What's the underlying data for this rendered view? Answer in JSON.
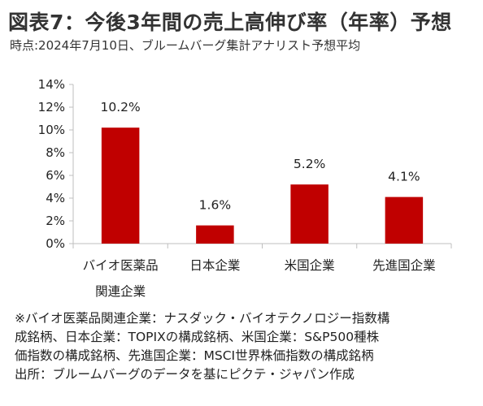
{
  "title": "図表7：今後3年間の売上高伸び率（年率）予想",
  "subtitle": "時点:2024年7月10日、ブルームバーグ集計アナリスト予想平均",
  "colors": {
    "bar": "#c00000",
    "axis": "#bfbfbf",
    "text": "#222222"
  },
  "chart_data": {
    "type": "bar",
    "categories": [
      [
        "バイオ医薬品",
        "関連企業"
      ],
      [
        "日本企業"
      ],
      [
        "米国企業"
      ],
      [
        "先進国企業"
      ]
    ],
    "values": [
      10.2,
      1.6,
      5.2,
      4.1
    ],
    "data_labels": [
      "10.2%",
      "1.6%",
      "5.2%",
      "4.1%"
    ],
    "yticks": [
      "0%",
      "2%",
      "4%",
      "6%",
      "8%",
      "10%",
      "12%",
      "14%"
    ],
    "ylim": [
      0,
      14
    ],
    "ystep": 2,
    "grid": false,
    "legend": "none"
  },
  "notes": [
    "※バイオ医薬品関連企業：ナスダック・バイオテクノロジー指数構",
    "成銘柄、日本企業：TOPIXの構成銘柄、米国企業：S&P500種株",
    "価指数の構成銘柄、先進国企業：MSCI世界株価指数の構成銘柄",
    "出所：ブルームバーグのデータを基にピクテ・ジャパン作成"
  ]
}
